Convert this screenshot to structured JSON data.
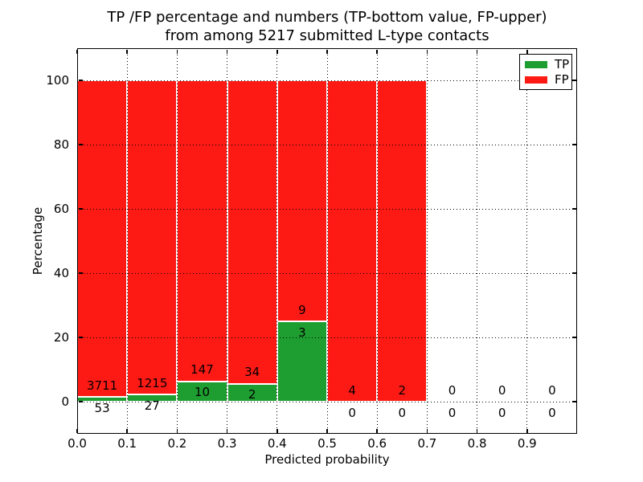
{
  "chart_data": {
    "type": "bar",
    "stacked": true,
    "units": "percent",
    "title_lines": [
      "TP /FP percentage and numbers (TP-bottom value, FP-upper)",
      "from among 5217 submitted L-type contacts"
    ],
    "xlabel": "Predicted probability",
    "ylabel": "Percentage",
    "xlim": [
      0.0,
      1.0
    ],
    "ylim": [
      -10,
      110
    ],
    "bin_width": 0.1,
    "bin_starts": [
      0.0,
      0.1,
      0.2,
      0.3,
      0.4,
      0.5,
      0.6,
      0.7,
      0.8,
      0.9
    ],
    "xtick_values": [
      0.0,
      0.1,
      0.2,
      0.3,
      0.4,
      0.5,
      0.6,
      0.7,
      0.8,
      0.9
    ],
    "xtick_labels": [
      "0.0",
      "0.1",
      "0.2",
      "0.3",
      "0.4",
      "0.5",
      "0.6",
      "0.7",
      "0.8",
      "0.9"
    ],
    "ytick_values": [
      0,
      20,
      40,
      60,
      80,
      100
    ],
    "ytick_labels": [
      "0",
      "20",
      "40",
      "60",
      "80",
      "100"
    ],
    "grid_style": "dotted",
    "series": [
      {
        "name": "TP",
        "color": "#1e9e31",
        "counts": [
          53,
          27,
          10,
          2,
          3,
          0,
          0,
          0,
          0,
          0
        ]
      },
      {
        "name": "FP",
        "color": "#fd1a15",
        "counts": [
          3711,
          1215,
          147,
          34,
          9,
          4,
          2,
          0,
          0,
          0
        ]
      }
    ],
    "tp_percent_of_bin": [
      1.41,
      2.17,
      6.37,
      5.56,
      25.0,
      0.0,
      0.0,
      null,
      null,
      null
    ],
    "total_contacts": 5217,
    "legend": {
      "position": "upper right",
      "items": [
        "TP",
        "FP"
      ]
    }
  }
}
